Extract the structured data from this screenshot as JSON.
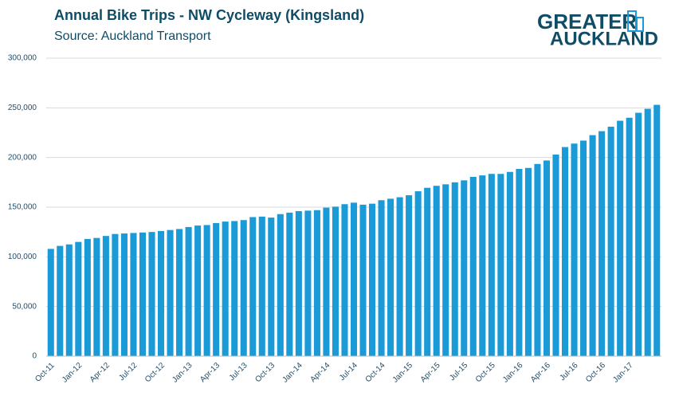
{
  "chart_data": {
    "type": "bar",
    "title": "Annual Bike Trips - NW Cycleway (Kingsland)",
    "subtitle": "Source: Auckland Transport",
    "logo": [
      "GREATER",
      "AUCKLAND"
    ],
    "color": "#1a9bd7",
    "grid": true,
    "categories": [
      "Oct-11",
      null,
      null,
      "Jan-12",
      null,
      null,
      "Apr-12",
      null,
      null,
      "Jul-12",
      null,
      null,
      "Oct-12",
      null,
      null,
      "Jan-13",
      null,
      null,
      "Apr-13",
      null,
      null,
      "Jul-13",
      null,
      null,
      "Oct-13",
      null,
      null,
      "Jan-14",
      null,
      null,
      "Apr-14",
      null,
      null,
      "Jul-14",
      null,
      null,
      "Oct-14",
      null,
      null,
      "Jan-15",
      null,
      null,
      "Apr-15",
      null,
      null,
      "Jul-15",
      null,
      null,
      "Oct-15",
      null,
      null,
      "Jan-16",
      null,
      null,
      "Apr-16",
      null,
      null,
      "Jul-16",
      null,
      null,
      "Oct-16",
      null,
      null,
      "Jan-17",
      null,
      null,
      null
    ],
    "values": [
      108000,
      111000,
      112500,
      115000,
      118000,
      119000,
      121000,
      123000,
      123500,
      124000,
      124500,
      125000,
      126000,
      127000,
      128000,
      130000,
      131500,
      132000,
      134000,
      135500,
      136000,
      137000,
      140000,
      140500,
      139500,
      143000,
      144500,
      146000,
      146500,
      147000,
      149500,
      150500,
      153000,
      154500,
      152500,
      153500,
      157000,
      158500,
      160000,
      162000,
      166000,
      169500,
      171500,
      173000,
      175000,
      177000,
      180500,
      182000,
      183500,
      183500,
      185500,
      188500,
      189500,
      193500,
      197000,
      203000,
      210500,
      214000,
      217000,
      222500,
      226500,
      231000,
      237000,
      240000,
      245000,
      249000,
      253000
    ],
    "ylim": [
      0,
      300000
    ],
    "yticks": [
      0,
      {
        "value": 50000,
        "label": "50,000"
      },
      {
        "value": 100000,
        "label": "100,000"
      },
      {
        "value": 150000,
        "label": "150,000"
      },
      {
        "value": 200000,
        "label": "200,000"
      },
      {
        "value": 250000,
        "label": "250,000"
      },
      {
        "value": 300000,
        "label": "300,000"
      }
    ]
  }
}
